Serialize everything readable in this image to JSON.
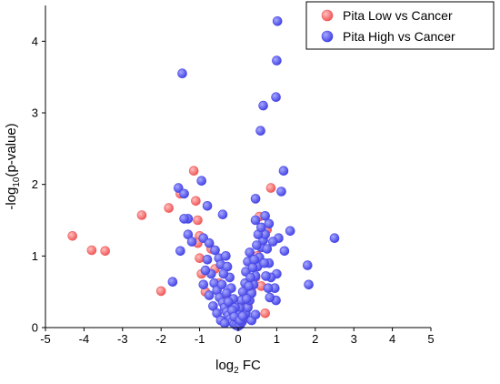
{
  "chart_data": {
    "type": "scatter",
    "title": "",
    "xlabel": {
      "base": "log",
      "sub": "2",
      "tail": " FC"
    },
    "ylabel": {
      "base": "-log",
      "sub": "10",
      "tail": "(p-value)"
    },
    "xlim": [
      -5,
      5
    ],
    "ylim": [
      0,
      4.5
    ],
    "xticks": [
      -5,
      -4,
      -3,
      -2,
      -1,
      0,
      1,
      2,
      3,
      4,
      5
    ],
    "yticks": [
      0,
      1,
      2,
      3,
      4
    ],
    "grid": false,
    "legend_position": "top-right",
    "series": [
      {
        "name": "Pita Low vs Cancer",
        "color": "#f05a5a",
        "points": [
          [
            -4.3,
            1.28
          ],
          [
            -3.8,
            1.08
          ],
          [
            -3.45,
            1.07
          ],
          [
            -2.5,
            1.57
          ],
          [
            -2.0,
            0.51
          ],
          [
            -1.8,
            1.67
          ],
          [
            -1.5,
            1.87
          ],
          [
            -1.15,
            2.19
          ],
          [
            -1.1,
            1.77
          ],
          [
            -1.05,
            1.5
          ],
          [
            -1.0,
            1.28
          ],
          [
            -1.05,
            1.18
          ],
          [
            -1.0,
            0.97
          ],
          [
            -0.95,
            0.75
          ],
          [
            -0.85,
            0.5
          ],
          [
            -0.7,
            1.1
          ],
          [
            -0.6,
            0.82
          ],
          [
            -0.5,
            0.62
          ],
          [
            -0.4,
            0.42
          ],
          [
            -0.3,
            0.25
          ],
          [
            -0.2,
            0.14
          ],
          [
            -0.1,
            0.08
          ],
          [
            0.05,
            0.06
          ],
          [
            0.15,
            0.12
          ],
          [
            0.25,
            0.3
          ],
          [
            0.35,
            0.5
          ],
          [
            0.45,
            0.7
          ],
          [
            0.5,
            1.0
          ],
          [
            0.55,
            1.55
          ],
          [
            0.6,
            0.58
          ],
          [
            0.7,
            0.2
          ],
          [
            0.75,
            1.37
          ],
          [
            0.85,
            1.95
          ]
        ]
      },
      {
        "name": "Pita High vs Cancer",
        "color": "#4646e6",
        "points": [
          [
            1.02,
            4.28
          ],
          [
            1.0,
            3.73
          ],
          [
            -1.45,
            3.55
          ],
          [
            0.98,
            3.22
          ],
          [
            0.65,
            3.1
          ],
          [
            0.58,
            2.75
          ],
          [
            1.18,
            2.19
          ],
          [
            1.12,
            1.9
          ],
          [
            -1.55,
            1.95
          ],
          [
            -0.95,
            2.05
          ],
          [
            0.45,
            1.8
          ],
          [
            -1.4,
            1.87
          ],
          [
            -1.3,
            1.52
          ],
          [
            -1.4,
            1.52
          ],
          [
            -0.8,
            1.7
          ],
          [
            -0.4,
            1.58
          ],
          [
            0.45,
            1.5
          ],
          [
            0.7,
            1.56
          ],
          [
            0.8,
            1.45
          ],
          [
            1.35,
            1.35
          ],
          [
            1.8,
            0.87
          ],
          [
            1.83,
            0.6
          ],
          [
            2.5,
            1.25
          ],
          [
            1.2,
            1.07
          ],
          [
            1.0,
            0.75
          ],
          [
            0.95,
            0.55
          ],
          [
            0.98,
            0.38
          ],
          [
            -1.5,
            1.07
          ],
          [
            -0.9,
            1.25
          ],
          [
            -0.75,
            1.18
          ],
          [
            -0.6,
            1.08
          ],
          [
            -0.5,
            0.97
          ],
          [
            -0.45,
            0.88
          ],
          [
            -0.7,
            0.75
          ],
          [
            -0.62,
            0.62
          ],
          [
            -0.55,
            0.52
          ],
          [
            -0.48,
            0.42
          ],
          [
            -0.4,
            0.35
          ],
          [
            -0.35,
            0.28
          ],
          [
            -0.3,
            0.22
          ],
          [
            -0.25,
            0.17
          ],
          [
            -0.2,
            0.12
          ],
          [
            -0.15,
            0.08
          ],
          [
            -0.1,
            0.05
          ],
          [
            -0.05,
            0.03
          ],
          [
            0.0,
            0.02
          ],
          [
            0.05,
            0.04
          ],
          [
            0.1,
            0.08
          ],
          [
            0.15,
            0.13
          ],
          [
            0.2,
            0.2
          ],
          [
            0.25,
            0.28
          ],
          [
            0.3,
            0.38
          ],
          [
            0.35,
            0.48
          ],
          [
            0.4,
            0.6
          ],
          [
            0.45,
            0.72
          ],
          [
            0.5,
            0.85
          ],
          [
            0.55,
            0.98
          ],
          [
            0.6,
            1.12
          ],
          [
            0.65,
            1.22
          ],
          [
            0.7,
            1.3
          ],
          [
            0.75,
            1.1
          ],
          [
            0.8,
            0.9
          ],
          [
            0.85,
            0.7
          ],
          [
            0.3,
            1.05
          ],
          [
            0.25,
            0.92
          ],
          [
            0.2,
            0.78
          ],
          [
            0.18,
            0.62
          ],
          [
            0.12,
            0.5
          ],
          [
            0.08,
            0.38
          ],
          [
            0.04,
            0.27
          ],
          [
            -0.02,
            0.18
          ],
          [
            -0.08,
            0.28
          ],
          [
            -0.12,
            0.4
          ],
          [
            -0.18,
            0.55
          ],
          [
            -0.22,
            0.7
          ],
          [
            -0.28,
            0.85
          ],
          [
            -0.32,
            1.0
          ],
          [
            -0.38,
            0.75
          ],
          [
            -0.42,
            0.6
          ],
          [
            -0.3,
            0.48
          ],
          [
            -0.25,
            0.36
          ],
          [
            -0.15,
            0.24
          ],
          [
            -0.1,
            0.15
          ],
          [
            0.05,
            0.1
          ],
          [
            0.12,
            0.16
          ],
          [
            0.22,
            0.4
          ],
          [
            0.28,
            0.58
          ],
          [
            0.32,
            0.7
          ],
          [
            0.38,
            0.84
          ],
          [
            0.42,
            0.95
          ],
          [
            0.48,
            1.15
          ],
          [
            0.52,
            1.3
          ],
          [
            0.6,
            1.4
          ],
          [
            0.68,
            0.9
          ],
          [
            0.72,
            0.72
          ],
          [
            0.78,
            0.55
          ],
          [
            0.82,
            0.42
          ],
          [
            -0.8,
            0.95
          ],
          [
            -0.85,
            0.8
          ],
          [
            -0.9,
            0.6
          ],
          [
            -0.75,
            0.45
          ],
          [
            -0.65,
            0.3
          ],
          [
            -0.55,
            0.2
          ],
          [
            -1.3,
            1.3
          ],
          [
            -1.2,
            1.2
          ],
          [
            1.05,
            1.25
          ],
          [
            0.9,
            1.2
          ],
          [
            -1.7,
            0.64
          ],
          [
            -0.45,
            0.1
          ],
          [
            -0.35,
            0.06
          ],
          [
            0.35,
            0.1
          ],
          [
            0.45,
            0.18
          ]
        ]
      }
    ]
  }
}
